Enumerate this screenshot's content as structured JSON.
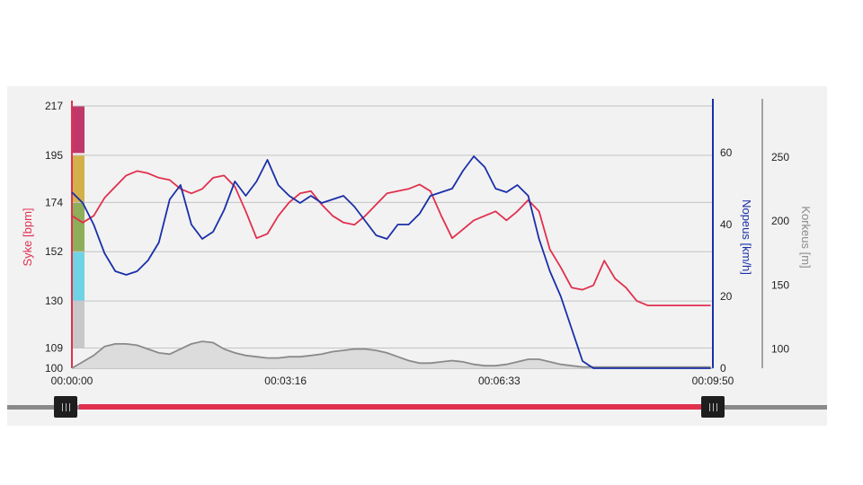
{
  "chart_data": {
    "type": "line",
    "x_ticks": [
      "00:00:00",
      "00:03:16",
      "00:06:33",
      "00:09:50"
    ],
    "x_range_seconds": [
      0,
      590
    ],
    "axes": {
      "left": {
        "label": "Syke [bpm]",
        "color": "#e0304e",
        "ticks": [
          217,
          195,
          174,
          152,
          130,
          109,
          100
        ],
        "range": [
          100,
          217
        ]
      },
      "right": {
        "label": "Nopeus [km/h]",
        "color": "#1a2fa8",
        "ticks": [
          0,
          20,
          40,
          60
        ],
        "range": [
          0,
          73
        ]
      },
      "far_right": {
        "label": "Korkeus [m]",
        "color": "#8a8a8a",
        "ticks": [
          100,
          150,
          200,
          250
        ],
        "range": [
          85,
          290
        ]
      }
    },
    "hr_zones": [
      {
        "from": 196,
        "to": 217,
        "color": "#c0386a"
      },
      {
        "from": 174,
        "to": 195,
        "color": "#d4b04a"
      },
      {
        "from": 152,
        "to": 174,
        "color": "#8fae5a"
      },
      {
        "from": 130,
        "to": 152,
        "color": "#6fd3e6"
      },
      {
        "from": 109,
        "to": 130,
        "color": "#c8c8c8"
      }
    ],
    "grid": true,
    "series": [
      {
        "name": "Syke [bpm]",
        "axis": "left",
        "color": "#e0304e",
        "x": [
          0,
          10,
          20,
          30,
          40,
          50,
          60,
          70,
          80,
          90,
          100,
          110,
          120,
          130,
          140,
          150,
          160,
          170,
          180,
          190,
          200,
          210,
          220,
          230,
          240,
          250,
          260,
          270,
          280,
          290,
          300,
          310,
          320,
          330,
          340,
          350,
          360,
          370,
          380,
          390,
          400,
          410,
          420,
          430,
          440,
          450,
          460,
          470,
          480,
          490,
          500,
          510,
          520,
          530,
          540,
          550,
          560,
          570,
          580,
          588
        ],
        "values": [
          168,
          165,
          168,
          176,
          181,
          186,
          188,
          187,
          185,
          184,
          180,
          178,
          180,
          185,
          186,
          181,
          170,
          158,
          160,
          168,
          174,
          178,
          179,
          173,
          168,
          165,
          164,
          168,
          173,
          178,
          179,
          180,
          182,
          179,
          168,
          158,
          162,
          166,
          168,
          170,
          166,
          170,
          175,
          170,
          153,
          145,
          136,
          135,
          137,
          148,
          140,
          136,
          130,
          128,
          128,
          128,
          128,
          128,
          128,
          128
        ]
      },
      {
        "name": "Nopeus [km/h]",
        "axis": "right",
        "color": "#1a2fa8",
        "x": [
          0,
          10,
          20,
          30,
          40,
          50,
          60,
          70,
          80,
          90,
          100,
          110,
          120,
          130,
          140,
          150,
          160,
          170,
          180,
          190,
          200,
          210,
          220,
          230,
          240,
          250,
          260,
          270,
          280,
          290,
          300,
          310,
          320,
          330,
          340,
          350,
          360,
          370,
          380,
          390,
          400,
          410,
          420,
          430,
          440,
          450,
          460,
          470,
          480,
          490,
          500,
          510,
          520,
          530,
          540,
          550,
          560,
          570,
          580,
          588
        ],
        "values": [
          49,
          46,
          40,
          32,
          27,
          26,
          27,
          30,
          35,
          47,
          51,
          40,
          36,
          38,
          44,
          52,
          48,
          52,
          58,
          51,
          48,
          46,
          48,
          46,
          47,
          48,
          45,
          41,
          37,
          36,
          40,
          40,
          43,
          48,
          49,
          50,
          55,
          59,
          56,
          50,
          49,
          51,
          48,
          36,
          27,
          20,
          11,
          2,
          0,
          0,
          0,
          0,
          0,
          0,
          0,
          0,
          0,
          0,
          0,
          0
        ]
      },
      {
        "name": "Korkeus [m]",
        "axis": "far_right",
        "color": "#8a8a8a",
        "x": [
          0,
          10,
          20,
          30,
          40,
          50,
          60,
          70,
          80,
          90,
          100,
          110,
          120,
          130,
          140,
          150,
          160,
          170,
          180,
          190,
          200,
          210,
          220,
          230,
          240,
          250,
          260,
          270,
          280,
          290,
          300,
          310,
          320,
          330,
          340,
          350,
          360,
          370,
          380,
          390,
          400,
          410,
          420,
          430,
          440,
          450,
          460,
          470,
          480,
          490,
          500,
          510,
          520,
          530,
          540,
          550,
          560,
          570,
          580,
          588
        ],
        "values": [
          85,
          90,
          95,
          102,
          104,
          104,
          103,
          100,
          97,
          96,
          100,
          104,
          106,
          105,
          100,
          97,
          95,
          94,
          93,
          93,
          94,
          94,
          95,
          96,
          98,
          99,
          100,
          100,
          99,
          97,
          94,
          91,
          89,
          89,
          90,
          91,
          90,
          88,
          87,
          87,
          88,
          90,
          92,
          92,
          90,
          88,
          87,
          86,
          86,
          86,
          86,
          86,
          86,
          86,
          86,
          86,
          86,
          86,
          86,
          86
        ]
      }
    ]
  }
}
